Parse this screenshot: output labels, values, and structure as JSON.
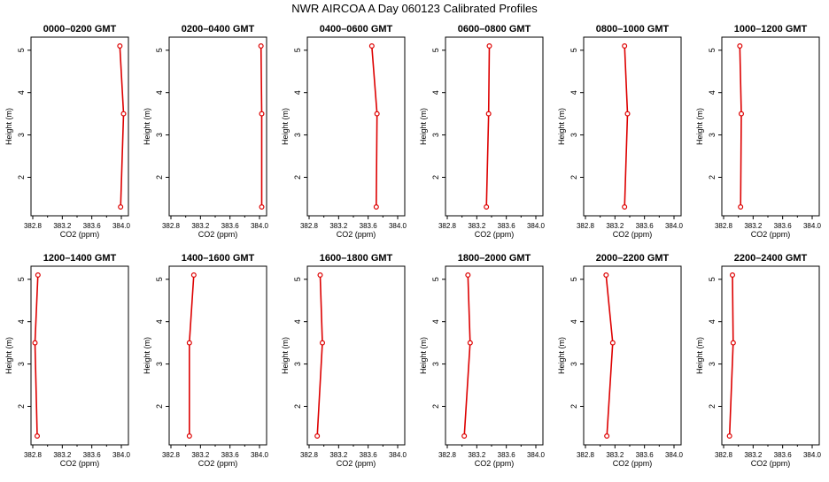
{
  "figure_title": "NWR AIRCOA A  Day 060123  Calibrated Profiles",
  "line_color": "#dd0000",
  "chart_data": [
    {
      "type": "line",
      "title": "0000–0200 GMT",
      "xlabel": "CO2 (ppm)",
      "ylabel": "Height (m)",
      "xlim": [
        382.8,
        384.0
      ],
      "ylim": [
        1.3,
        5.1
      ],
      "x_ticks": [
        "382.8",
        "383.2",
        "383.6",
        "384.0"
      ],
      "y_ticks": [
        "2",
        "3",
        "4",
        "5"
      ],
      "heights": [
        1.3,
        3.5,
        5.1
      ],
      "values": [
        383.99,
        384.03,
        383.98
      ]
    },
    {
      "type": "line",
      "title": "0200–0400 GMT",
      "xlabel": "CO2 (ppm)",
      "ylabel": "Height (m)",
      "xlim": [
        382.8,
        384.0
      ],
      "ylim": [
        1.3,
        5.1
      ],
      "x_ticks": [
        "382.8",
        "383.2",
        "383.6",
        "384.0"
      ],
      "y_ticks": [
        "2",
        "3",
        "4",
        "5"
      ],
      "heights": [
        1.3,
        3.5,
        5.1
      ],
      "values": [
        384.03,
        384.03,
        384.02
      ]
    },
    {
      "type": "line",
      "title": "0400–0600 GMT",
      "xlabel": "CO2 (ppm)",
      "ylabel": "Height (m)",
      "xlim": [
        382.8,
        384.0
      ],
      "ylim": [
        1.3,
        5.1
      ],
      "x_ticks": [
        "382.8",
        "383.2",
        "383.6",
        "384.0"
      ],
      "y_ticks": [
        "2",
        "3",
        "4",
        "5"
      ],
      "heights": [
        1.3,
        3.5,
        5.1
      ],
      "values": [
        383.71,
        383.72,
        383.65
      ]
    },
    {
      "type": "line",
      "title": "0600–0800 GMT",
      "xlabel": "CO2 (ppm)",
      "ylabel": "Height (m)",
      "xlim": [
        382.8,
        384.0
      ],
      "ylim": [
        1.3,
        5.1
      ],
      "x_ticks": [
        "382.8",
        "383.2",
        "383.6",
        "384.0"
      ],
      "y_ticks": [
        "2",
        "3",
        "4",
        "5"
      ],
      "heights": [
        1.3,
        3.5,
        5.1
      ],
      "values": [
        383.33,
        383.36,
        383.37
      ]
    },
    {
      "type": "line",
      "title": "0800–1000 GMT",
      "xlabel": "CO2 (ppm)",
      "ylabel": "Height (m)",
      "xlim": [
        382.8,
        384.0
      ],
      "ylim": [
        1.3,
        5.1
      ],
      "x_ticks": [
        "382.8",
        "383.2",
        "383.6",
        "384.0"
      ],
      "y_ticks": [
        "2",
        "3",
        "4",
        "5"
      ],
      "heights": [
        1.3,
        3.5,
        5.1
      ],
      "values": [
        383.33,
        383.37,
        383.33
      ]
    },
    {
      "type": "line",
      "title": "1000–1200 GMT",
      "xlabel": "CO2 (ppm)",
      "ylabel": "Height (m)",
      "xlim": [
        382.8,
        384.0
      ],
      "ylim": [
        1.3,
        5.1
      ],
      "x_ticks": [
        "382.8",
        "383.2",
        "383.6",
        "384.0"
      ],
      "y_ticks": [
        "2",
        "3",
        "4",
        "5"
      ],
      "heights": [
        1.3,
        3.5,
        5.1
      ],
      "values": [
        383.03,
        383.04,
        383.02
      ]
    },
    {
      "type": "line",
      "title": "1200–1400 GMT",
      "xlabel": "CO2 (ppm)",
      "ylabel": "Height (m)",
      "xlim": [
        382.8,
        384.0
      ],
      "ylim": [
        1.3,
        5.1
      ],
      "x_ticks": [
        "382.8",
        "383.2",
        "383.6",
        "384.0"
      ],
      "y_ticks": [
        "2",
        "3",
        "4",
        "5"
      ],
      "heights": [
        1.3,
        3.5,
        5.1
      ],
      "values": [
        382.86,
        382.83,
        382.87
      ]
    },
    {
      "type": "line",
      "title": "1400–1600 GMT",
      "xlabel": "CO2 (ppm)",
      "ylabel": "Height (m)",
      "xlim": [
        382.8,
        384.0
      ],
      "ylim": [
        1.3,
        5.1
      ],
      "x_ticks": [
        "382.8",
        "383.2",
        "383.6",
        "384.0"
      ],
      "y_ticks": [
        "2",
        "3",
        "4",
        "5"
      ],
      "heights": [
        1.3,
        3.5,
        5.1
      ],
      "values": [
        383.05,
        383.05,
        383.11
      ]
    },
    {
      "type": "line",
      "title": "1600–1800 GMT",
      "xlabel": "CO2 (ppm)",
      "ylabel": "Height (m)",
      "xlim": [
        382.8,
        384.0
      ],
      "ylim": [
        1.3,
        5.1
      ],
      "x_ticks": [
        "382.8",
        "383.2",
        "383.6",
        "384.0"
      ],
      "y_ticks": [
        "2",
        "3",
        "4",
        "5"
      ],
      "heights": [
        1.3,
        3.5,
        5.1
      ],
      "values": [
        382.91,
        382.98,
        382.95
      ]
    },
    {
      "type": "line",
      "title": "1800–2000 GMT",
      "xlabel": "CO2 (ppm)",
      "ylabel": "Height (m)",
      "xlim": [
        382.8,
        384.0
      ],
      "ylim": [
        1.3,
        5.1
      ],
      "x_ticks": [
        "382.8",
        "383.2",
        "383.6",
        "384.0"
      ],
      "y_ticks": [
        "2",
        "3",
        "4",
        "5"
      ],
      "heights": [
        1.3,
        3.5,
        5.1
      ],
      "values": [
        383.03,
        383.11,
        383.08
      ]
    },
    {
      "type": "line",
      "title": "2000–2200 GMT",
      "xlabel": "CO2 (ppm)",
      "ylabel": "Height (m)",
      "xlim": [
        382.8,
        384.0
      ],
      "ylim": [
        1.3,
        5.1
      ],
      "x_ticks": [
        "382.8",
        "383.2",
        "383.6",
        "384.0"
      ],
      "y_ticks": [
        "2",
        "3",
        "4",
        "5"
      ],
      "heights": [
        1.3,
        3.5,
        5.1
      ],
      "values": [
        383.09,
        383.17,
        383.08
      ]
    },
    {
      "type": "line",
      "title": "2200–2400 GMT",
      "xlabel": "CO2 (ppm)",
      "ylabel": "Height (m)",
      "xlim": [
        382.8,
        384.0
      ],
      "ylim": [
        1.3,
        5.1
      ],
      "x_ticks": [
        "382.8",
        "383.2",
        "383.6",
        "384.0"
      ],
      "y_ticks": [
        "2",
        "3",
        "4",
        "5"
      ],
      "heights": [
        1.3,
        3.5,
        5.1
      ],
      "values": [
        382.88,
        382.93,
        382.92
      ]
    }
  ]
}
